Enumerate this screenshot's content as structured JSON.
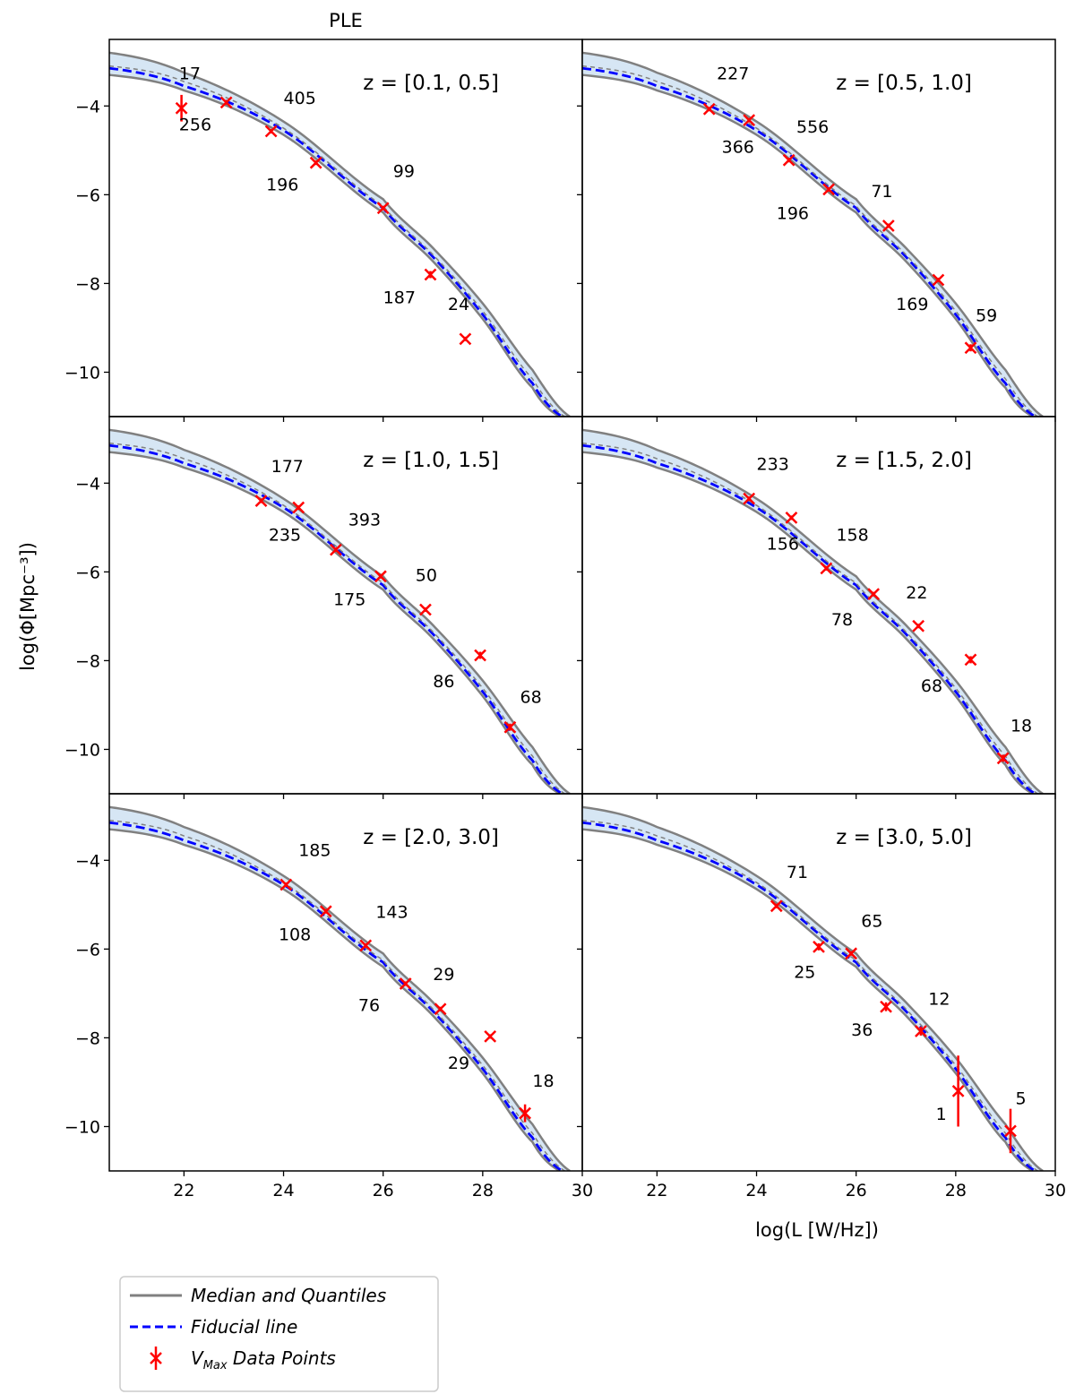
{
  "chart_data": {
    "type": "line",
    "title": "PLE",
    "xlabel": "log(L [W/Hz])",
    "ylabel": "log(Φ[Mpc⁻³])",
    "xlim": [
      20.5,
      30
    ],
    "ylim": [
      -11,
      -2.5
    ],
    "xticks": [
      22,
      24,
      26,
      28,
      30
    ],
    "yticks": [
      -4,
      -6,
      -8,
      -10
    ],
    "layout": "3 rows x 2 columns, shared axes",
    "grid": false,
    "legend_placement": "below, bottom-left",
    "colors": {
      "median": "#808080",
      "band": "#d6e6f4",
      "fiducial": "#0000ff",
      "data": "#ff0000"
    },
    "legend": [
      {
        "label": "Median and Quantiles",
        "style": "grey-line"
      },
      {
        "label": "Fiducial line",
        "style": "blue-dash"
      },
      {
        "label": "V",
        "sub": "Max",
        "rest": " Data Points",
        "style": "red-x-errorbar"
      }
    ],
    "panels": [
      {
        "label": "z = [0.1, 0.5]",
        "fiducial": {
          "x": [
            20.5,
            22,
            24,
            26,
            27,
            28,
            29,
            29.6
          ],
          "y": [
            -3.15,
            -3.55,
            -4.55,
            -6.3,
            -7.4,
            -8.7,
            -10.25,
            -11.0
          ]
        },
        "lower": {
          "x": [
            20.5,
            22,
            24,
            26,
            27,
            28,
            29,
            29.55
          ],
          "y": [
            -3.3,
            -3.65,
            -4.65,
            -6.4,
            -7.5,
            -8.8,
            -10.35,
            -11.0
          ]
        },
        "median": {
          "x": [
            20.5,
            22,
            24,
            26,
            27,
            28,
            29,
            29.65
          ],
          "y": [
            -3.1,
            -3.45,
            -4.5,
            -6.25,
            -7.35,
            -8.62,
            -10.15,
            -11.0
          ]
        },
        "upper": {
          "x": [
            20.5,
            22,
            24,
            26,
            27,
            28,
            29,
            29.75
          ],
          "y": [
            -2.8,
            -3.25,
            -4.35,
            -6.1,
            -7.2,
            -8.45,
            -9.95,
            -11.0
          ]
        },
        "points": [
          {
            "x": 21.95,
            "y": -4.05,
            "err": 0.3,
            "label": "17",
            "lx": 21.9,
            "ly": -3.4
          },
          {
            "x": 22.85,
            "y": -3.92,
            "err": 0.05,
            "label": "256",
            "lx": 21.9,
            "ly": -4.55
          },
          {
            "x": 23.75,
            "y": -4.57,
            "err": 0.05,
            "label": "405",
            "lx": 24.0,
            "ly": -3.95
          },
          {
            "x": 24.65,
            "y": -5.28,
            "err": 0.05,
            "label": "196",
            "lx": 23.65,
            "ly": -5.9
          },
          {
            "x": 26.0,
            "y": -6.3,
            "err": 0.05,
            "label": "99",
            "lx": 26.2,
            "ly": -5.6
          },
          {
            "x": 26.95,
            "y": -7.8,
            "err": 0.08,
            "label": "187",
            "lx": 26.0,
            "ly": -8.45
          },
          {
            "x": 27.65,
            "y": -9.25,
            "err": 0.05,
            "label": "24",
            "lx": 27.3,
            "ly": -8.6
          }
        ]
      },
      {
        "label": "z = [0.5, 1.0]",
        "fiducial": {
          "x": [
            20.5,
            22,
            24,
            26,
            27,
            28,
            29,
            29.6
          ],
          "y": [
            -3.15,
            -3.55,
            -4.55,
            -6.3,
            -7.4,
            -8.7,
            -10.25,
            -11.0
          ]
        },
        "lower": {
          "x": [
            20.5,
            22,
            24,
            26,
            27,
            28,
            29,
            29.55
          ],
          "y": [
            -3.3,
            -3.65,
            -4.65,
            -6.4,
            -7.5,
            -8.8,
            -10.35,
            -11.0
          ]
        },
        "median": {
          "x": [
            20.5,
            22,
            24,
            26,
            27,
            28,
            29,
            29.65
          ],
          "y": [
            -3.1,
            -3.45,
            -4.5,
            -6.25,
            -7.35,
            -8.62,
            -10.15,
            -11.0
          ]
        },
        "upper": {
          "x": [
            20.5,
            22,
            24,
            26,
            27,
            28,
            29,
            29.75
          ],
          "y": [
            -2.8,
            -3.25,
            -4.35,
            -6.1,
            -7.2,
            -8.45,
            -9.95,
            -11.0
          ]
        },
        "points": [
          {
            "x": 23.05,
            "y": -4.07,
            "err": 0.05,
            "label": "227",
            "lx": 23.2,
            "ly": -3.4
          },
          {
            "x": 23.85,
            "y": -4.32,
            "err": 0.05,
            "label": "366",
            "lx": 23.3,
            "ly": -5.05
          },
          {
            "x": 24.65,
            "y": -5.22,
            "err": 0.05,
            "label": "556",
            "lx": 24.8,
            "ly": -4.6
          },
          {
            "x": 25.45,
            "y": -5.88,
            "err": 0.05,
            "label": "196",
            "lx": 24.4,
            "ly": -6.55
          },
          {
            "x": 26.65,
            "y": -6.7,
            "err": 0.05,
            "label": "71",
            "lx": 26.3,
            "ly": -6.05
          },
          {
            "x": 27.65,
            "y": -7.92,
            "err": 0.05,
            "label": "169",
            "lx": 26.8,
            "ly": -8.6
          },
          {
            "x": 28.3,
            "y": -9.45,
            "err": 0.08,
            "label": "59",
            "lx": 28.4,
            "ly": -8.85
          }
        ]
      },
      {
        "label": "z = [1.0, 1.5]",
        "fiducial": {
          "x": [
            20.5,
            22,
            24,
            26,
            27,
            28,
            29,
            29.6
          ],
          "y": [
            -3.15,
            -3.55,
            -4.55,
            -6.3,
            -7.4,
            -8.7,
            -10.25,
            -11.0
          ]
        },
        "lower": {
          "x": [
            20.5,
            22,
            24,
            26,
            27,
            28,
            29,
            29.55
          ],
          "y": [
            -3.3,
            -3.65,
            -4.65,
            -6.4,
            -7.5,
            -8.8,
            -10.35,
            -11.0
          ]
        },
        "median": {
          "x": [
            20.5,
            22,
            24,
            26,
            27,
            28,
            29,
            29.65
          ],
          "y": [
            -3.1,
            -3.45,
            -4.5,
            -6.25,
            -7.35,
            -8.62,
            -10.15,
            -11.0
          ]
        },
        "upper": {
          "x": [
            20.5,
            22,
            24,
            26,
            27,
            28,
            29,
            29.75
          ],
          "y": [
            -2.8,
            -3.25,
            -4.35,
            -6.1,
            -7.2,
            -8.45,
            -9.95,
            -11.0
          ]
        },
        "points": [
          {
            "x": 23.55,
            "y": -4.4,
            "err": 0.05,
            "label": "177",
            "lx": 23.75,
            "ly": -3.75
          },
          {
            "x": 24.3,
            "y": -4.55,
            "err": 0.05,
            "label": "235",
            "lx": 23.7,
            "ly": -5.3
          },
          {
            "x": 25.05,
            "y": -5.5,
            "err": 0.05,
            "label": "393",
            "lx": 25.3,
            "ly": -4.95
          },
          {
            "x": 25.95,
            "y": -6.1,
            "err": 0.05,
            "label": "175",
            "lx": 25.0,
            "ly": -6.75
          },
          {
            "x": 26.85,
            "y": -6.85,
            "err": 0.05,
            "label": "50",
            "lx": 26.65,
            "ly": -6.2
          },
          {
            "x": 27.95,
            "y": -7.88,
            "err": 0.08,
            "label": "86",
            "lx": 27.0,
            "ly": -8.6
          },
          {
            "x": 28.55,
            "y": -9.5,
            "err": 0.08,
            "label": "68",
            "lx": 28.75,
            "ly": -8.95
          }
        ]
      },
      {
        "label": "z = [1.5, 2.0]",
        "fiducial": {
          "x": [
            20.5,
            22,
            24,
            26,
            27,
            28,
            29,
            29.6
          ],
          "y": [
            -3.15,
            -3.55,
            -4.55,
            -6.3,
            -7.4,
            -8.7,
            -10.25,
            -11.0
          ]
        },
        "lower": {
          "x": [
            20.5,
            22,
            24,
            26,
            27,
            28,
            29,
            29.55
          ],
          "y": [
            -3.3,
            -3.65,
            -4.65,
            -6.4,
            -7.5,
            -8.8,
            -10.35,
            -11.0
          ]
        },
        "median": {
          "x": [
            20.5,
            22,
            24,
            26,
            27,
            28,
            29,
            29.65
          ],
          "y": [
            -3.1,
            -3.45,
            -4.5,
            -6.25,
            -7.35,
            -8.62,
            -10.15,
            -11.0
          ]
        },
        "upper": {
          "x": [
            20.5,
            22,
            24,
            26,
            27,
            28,
            29,
            29.75
          ],
          "y": [
            -2.8,
            -3.25,
            -4.35,
            -6.1,
            -7.2,
            -8.45,
            -9.95,
            -11.0
          ]
        },
        "points": [
          {
            "x": 23.85,
            "y": -4.35,
            "err": 0.05,
            "label": "233",
            "lx": 24.0,
            "ly": -3.7
          },
          {
            "x": 24.7,
            "y": -4.78,
            "err": 0.05,
            "label": "156",
            "lx": 24.2,
            "ly": -5.5
          },
          {
            "x": 25.4,
            "y": -5.92,
            "err": 0.05,
            "label": "158",
            "lx": 25.6,
            "ly": -5.3
          },
          {
            "x": 26.35,
            "y": -6.5,
            "err": 0.05,
            "label": "78",
            "lx": 25.5,
            "ly": -7.2
          },
          {
            "x": 27.25,
            "y": -7.22,
            "err": 0.05,
            "label": "22",
            "lx": 27.0,
            "ly": -6.6
          },
          {
            "x": 28.3,
            "y": -7.98,
            "err": 0.08,
            "label": "68",
            "lx": 27.3,
            "ly": -8.7
          },
          {
            "x": 28.95,
            "y": -10.2,
            "err": 0.08,
            "label": "18",
            "lx": 29.1,
            "ly": -9.6
          }
        ]
      },
      {
        "label": "z = [2.0, 3.0]",
        "fiducial": {
          "x": [
            20.5,
            22,
            24,
            26,
            27,
            28,
            29,
            29.6
          ],
          "y": [
            -3.15,
            -3.55,
            -4.55,
            -6.3,
            -7.4,
            -8.7,
            -10.25,
            -11.0
          ]
        },
        "lower": {
          "x": [
            20.5,
            22,
            24,
            26,
            27,
            28,
            29,
            29.55
          ],
          "y": [
            -3.3,
            -3.65,
            -4.65,
            -6.4,
            -7.5,
            -8.8,
            -10.35,
            -11.0
          ]
        },
        "median": {
          "x": [
            20.5,
            22,
            24,
            26,
            27,
            28,
            29,
            29.65
          ],
          "y": [
            -3.1,
            -3.45,
            -4.5,
            -6.25,
            -7.35,
            -8.62,
            -10.15,
            -11.0
          ]
        },
        "upper": {
          "x": [
            20.5,
            22,
            24,
            26,
            27,
            28,
            29,
            29.75
          ],
          "y": [
            -2.8,
            -3.25,
            -4.35,
            -6.1,
            -7.2,
            -8.45,
            -9.95,
            -11.0
          ]
        },
        "points": [
          {
            "x": 24.05,
            "y": -4.55,
            "err": 0.05,
            "label": "185",
            "lx": 24.3,
            "ly": -3.9
          },
          {
            "x": 24.85,
            "y": -5.15,
            "err": 0.05,
            "label": "108",
            "lx": 23.9,
            "ly": -5.8
          },
          {
            "x": 25.65,
            "y": -5.92,
            "err": 0.05,
            "label": "143",
            "lx": 25.85,
            "ly": -5.3
          },
          {
            "x": 26.45,
            "y": -6.78,
            "err": 0.05,
            "label": "76",
            "lx": 25.5,
            "ly": -7.4
          },
          {
            "x": 27.15,
            "y": -7.35,
            "err": 0.05,
            "label": "29",
            "lx": 27.0,
            "ly": -6.7
          },
          {
            "x": 28.15,
            "y": -7.97,
            "err": 0.05,
            "label": "29",
            "lx": 27.3,
            "ly": -8.7
          },
          {
            "x": 28.85,
            "y": -9.7,
            "err": 0.2,
            "label": "18",
            "lx": 29.0,
            "ly": -9.1
          }
        ]
      },
      {
        "label": "z = [3.0, 5.0]",
        "fiducial": {
          "x": [
            20.5,
            22,
            24,
            26,
            27,
            28,
            29,
            29.6
          ],
          "y": [
            -3.15,
            -3.55,
            -4.55,
            -6.3,
            -7.4,
            -8.7,
            -10.25,
            -11.0
          ]
        },
        "lower": {
          "x": [
            20.5,
            22,
            24,
            26,
            27,
            28,
            29,
            29.55
          ],
          "y": [
            -3.3,
            -3.65,
            -4.65,
            -6.4,
            -7.5,
            -8.8,
            -10.35,
            -11.0
          ]
        },
        "median": {
          "x": [
            20.5,
            22,
            24,
            26,
            27,
            28,
            29,
            29.65
          ],
          "y": [
            -3.1,
            -3.45,
            -4.5,
            -6.25,
            -7.35,
            -8.62,
            -10.15,
            -11.0
          ]
        },
        "upper": {
          "x": [
            20.5,
            22,
            24,
            26,
            27,
            28,
            29,
            29.75
          ],
          "y": [
            -2.8,
            -3.25,
            -4.35,
            -6.1,
            -7.2,
            -8.45,
            -9.95,
            -11.0
          ]
        },
        "points": [
          {
            "x": 24.4,
            "y": -5.03,
            "err": 0.05,
            "label": "71",
            "lx": 24.6,
            "ly": -4.4
          },
          {
            "x": 25.25,
            "y": -5.95,
            "err": 0.08,
            "label": "25",
            "lx": 24.75,
            "ly": -6.65
          },
          {
            "x": 25.9,
            "y": -6.1,
            "err": 0.05,
            "label": "65",
            "lx": 26.1,
            "ly": -5.5
          },
          {
            "x": 26.6,
            "y": -7.3,
            "err": 0.1,
            "label": "36",
            "lx": 25.9,
            "ly": -7.95
          },
          {
            "x": 27.3,
            "y": -7.85,
            "err": 0.1,
            "label": "12",
            "lx": 27.45,
            "ly": -7.25
          },
          {
            "x": 28.05,
            "y": -9.2,
            "err": 0.8,
            "label": "1",
            "lx": 27.6,
            "ly": -9.85
          },
          {
            "x": 29.1,
            "y": -10.1,
            "err": 0.5,
            "label": "5",
            "lx": 29.2,
            "ly": -9.5
          }
        ]
      }
    ]
  }
}
